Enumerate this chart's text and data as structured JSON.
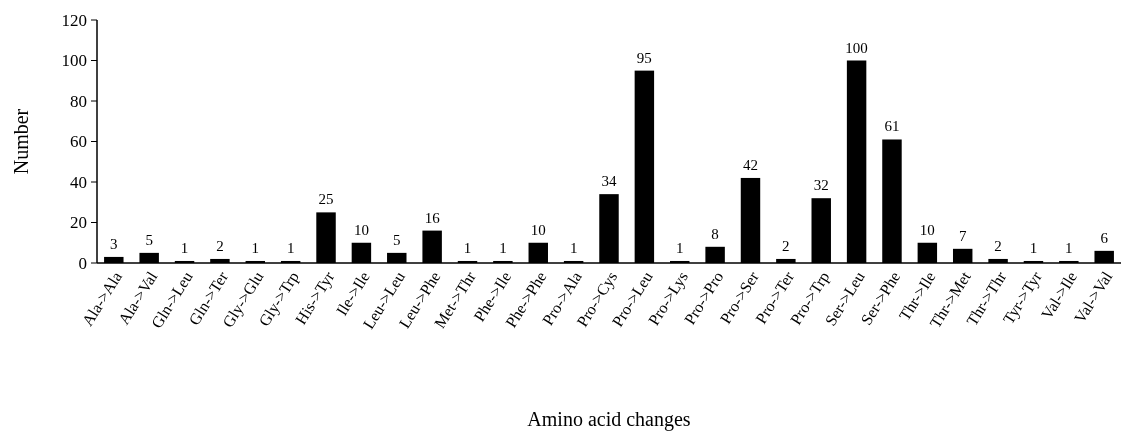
{
  "chart_data": {
    "type": "bar",
    "xlabel": "Amino acid changes",
    "ylabel": "Number",
    "categories": [
      "Ala->Ala",
      "Ala->Val",
      "Gln->Leu",
      "Gln->Ter",
      "Gly->Glu",
      "Gly->Trp",
      "His->Tyr",
      "Ile->Ile",
      "Leu->Leu",
      "Leu->Phe",
      "Met->Thr",
      "Phe->Ile",
      "Phe->Phe",
      "Pro->Ala",
      "Pro->Cys",
      "Pro->Leu",
      "Pro->Lys",
      "Pro->Pro",
      "Pro->Ser",
      "Pro->Ter",
      "Pro->Trp",
      "Ser->Leu",
      "Ser->Phe",
      "Thr->Ile",
      "Thr->Met",
      "Thr->Thr",
      "Tyr->Tyr",
      "Val->Ile",
      "Val->Val"
    ],
    "values": [
      3,
      5,
      1,
      2,
      1,
      1,
      25,
      10,
      5,
      16,
      1,
      1,
      10,
      1,
      34,
      95,
      1,
      8,
      42,
      2,
      32,
      100,
      61,
      10,
      7,
      2,
      1,
      1,
      6
    ],
    "color": "#000000",
    "ylim": [
      0,
      120
    ],
    "yticks": [
      0,
      20,
      40,
      60,
      80,
      100,
      120
    ],
    "grid": false,
    "data_labels": true
  }
}
